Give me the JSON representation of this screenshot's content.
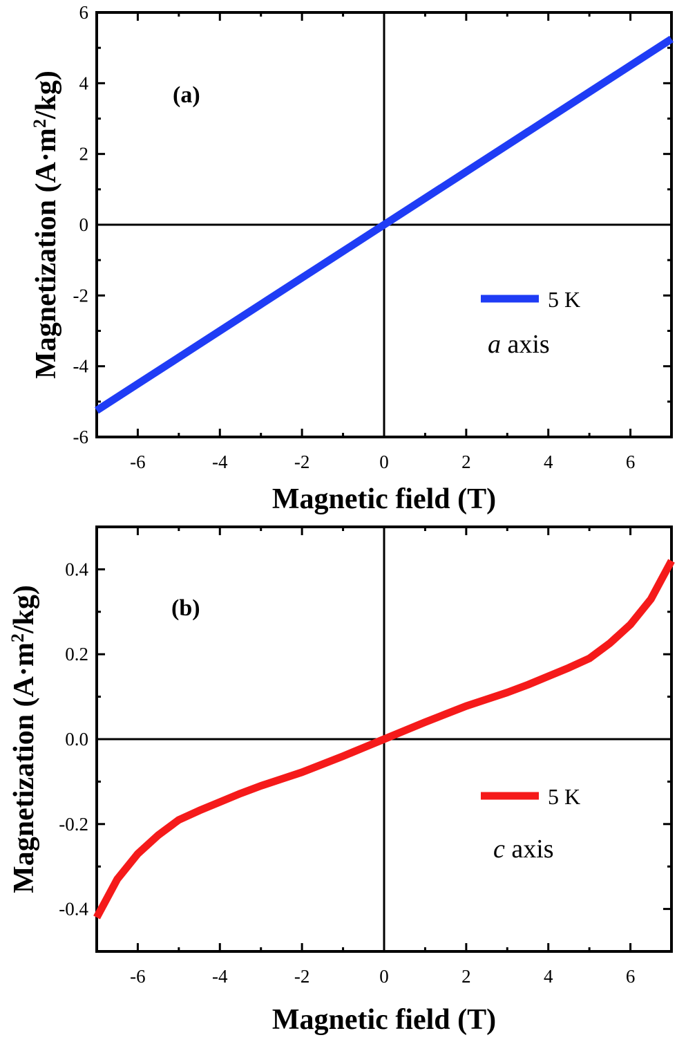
{
  "chart_data": [
    {
      "type": "line",
      "panel_label": "(a)",
      "xlabel": "Magnetic field (T)",
      "ylabel_main": "Magnetization (A·m",
      "ylabel_sup": "2",
      "ylabel_end": "/kg)",
      "xlim": [
        -7,
        7
      ],
      "ylim": [
        -6,
        6
      ],
      "xticks": [
        -6,
        -4,
        -2,
        0,
        2,
        4,
        6
      ],
      "yticks": [
        6,
        4,
        2,
        0,
        -2,
        -4,
        -6
      ],
      "ytick_labels": [
        "6",
        "4",
        "2",
        "0",
        "-2",
        "-4",
        "-6"
      ],
      "grid": false,
      "legend_position": "right",
      "series": [
        {
          "name": "5 K",
          "color": "#1f3cf5",
          "x": [
            -7,
            -6,
            -5,
            -4,
            -3,
            -2,
            -1,
            0,
            1,
            2,
            3,
            4,
            5,
            6,
            7
          ],
          "y": [
            -5.25,
            -4.5,
            -3.75,
            -3.0,
            -2.25,
            -1.5,
            -0.75,
            0.0,
            0.75,
            1.5,
            2.25,
            3.0,
            3.75,
            4.5,
            5.25
          ]
        }
      ],
      "annotation_italic": "a",
      "annotation_rest": " axis"
    },
    {
      "type": "line",
      "panel_label": "(b)",
      "xlabel": "Magnetic field (T)",
      "ylabel_main": "Magnetization (A·m",
      "ylabel_sup": "2",
      "ylabel_end": "/kg)",
      "xlim": [
        -7,
        7
      ],
      "ylim": [
        -0.5,
        0.5
      ],
      "xticks": [
        -6,
        -4,
        -2,
        0,
        2,
        4,
        6
      ],
      "yticks": [
        0.4,
        0.2,
        0.0,
        -0.2,
        -0.4
      ],
      "ytick_labels": [
        "0.4",
        "0.2",
        "0.0",
        "-0.2",
        "-0.4"
      ],
      "grid": false,
      "legend_position": "right",
      "series": [
        {
          "name": "5 K",
          "color": "#f51a1a",
          "x": [
            -7,
            -6.5,
            -6,
            -5.5,
            -5,
            -4.5,
            -4,
            -3.5,
            -3,
            -2.5,
            -2,
            -1.5,
            -1,
            -0.5,
            0,
            0.5,
            1,
            1.5,
            2,
            2.5,
            3,
            3.5,
            4,
            4.5,
            5,
            5.5,
            6,
            6.5,
            7
          ],
          "y": [
            -0.42,
            -0.33,
            -0.27,
            -0.226,
            -0.19,
            -0.168,
            -0.148,
            -0.128,
            -0.11,
            -0.094,
            -0.078,
            -0.059,
            -0.04,
            -0.02,
            0.0,
            0.02,
            0.04,
            0.059,
            0.078,
            0.094,
            0.11,
            0.128,
            0.148,
            0.168,
            0.19,
            0.226,
            0.27,
            0.33,
            0.42
          ]
        }
      ],
      "annotation_italic": "c",
      "annotation_rest": " axis"
    }
  ]
}
